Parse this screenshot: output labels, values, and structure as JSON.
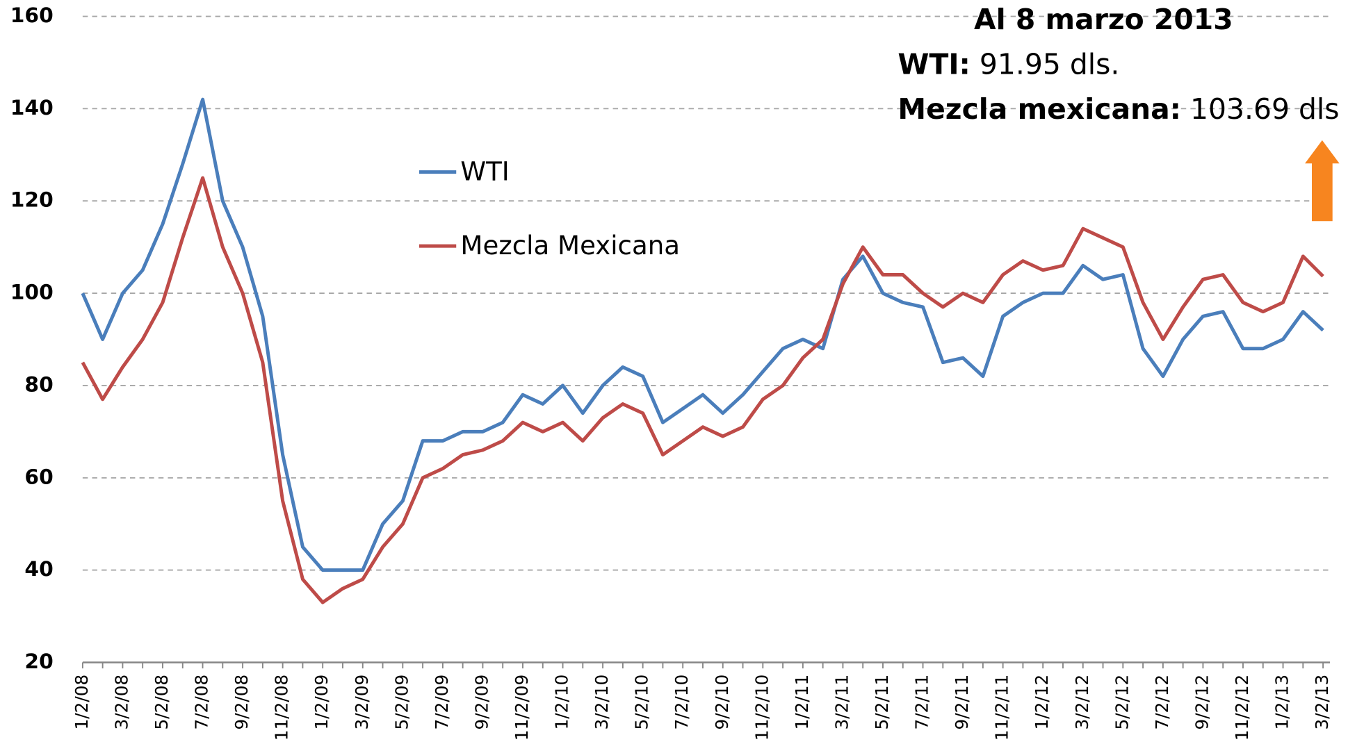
{
  "chart_data": {
    "type": "line",
    "categories": [
      "1/2/08",
      null,
      "3/2/08",
      null,
      "5/2/08",
      null,
      "7/2/08",
      null,
      "9/2/08",
      null,
      "11/2/08",
      null,
      "1/2/09",
      null,
      "3/2/09",
      null,
      "5/2/09",
      null,
      "7/2/09",
      null,
      "9/2/09",
      null,
      "11/2/09",
      null,
      "1/2/10",
      null,
      "3/2/10",
      null,
      "5/2/10",
      null,
      "7/2/10",
      null,
      "9/2/10",
      null,
      "11/2/10",
      null,
      "1/2/11",
      null,
      "3/2/11",
      null,
      "5/2/11",
      null,
      "7/2/11",
      null,
      "9/2/11",
      null,
      "11/2/11",
      null,
      "1/2/12",
      null,
      "3/2/12",
      null,
      "5/2/12",
      null,
      "7/2/12",
      null,
      "9/2/12",
      null,
      "11/2/12",
      null,
      "1/2/13",
      null,
      "3/2/13"
    ],
    "series": [
      {
        "name": "WTI",
        "color": "#4a7ebb",
        "values": [
          100,
          90,
          100,
          105,
          115,
          128,
          142,
          120,
          110,
          95,
          65,
          45,
          40,
          40,
          40,
          50,
          55,
          68,
          68,
          70,
          70,
          72,
          78,
          76,
          80,
          74,
          80,
          84,
          82,
          72,
          75,
          78,
          74,
          78,
          83,
          88,
          90,
          88,
          103,
          108,
          100,
          98,
          97,
          85,
          86,
          82,
          95,
          98,
          100,
          100,
          106,
          103,
          104,
          88,
          82,
          90,
          95,
          96,
          88,
          88,
          90,
          96,
          91.95
        ]
      },
      {
        "name": "Mezcla Mexicana",
        "color": "#be4b48",
        "values": [
          85,
          77,
          84,
          90,
          98,
          112,
          125,
          110,
          100,
          85,
          55,
          38,
          33,
          36,
          38,
          45,
          50,
          60,
          62,
          65,
          66,
          68,
          72,
          70,
          72,
          68,
          73,
          76,
          74,
          65,
          68,
          71,
          69,
          71,
          77,
          80,
          86,
          90,
          102,
          110,
          104,
          104,
          100,
          97,
          100,
          98,
          104,
          107,
          105,
          106,
          114,
          112,
          110,
          98,
          90,
          97,
          103,
          104,
          98,
          96,
          98,
          108,
          103.69
        ]
      }
    ],
    "ylim": [
      20,
      160
    ],
    "yticks": [
      20,
      40,
      60,
      80,
      100,
      120,
      140,
      160
    ],
    "grid": true,
    "annotations": {
      "date": "Al 8 marzo 2013",
      "wti_label": "WTI:",
      "wti_value": "91.95 dls.",
      "mezcla_label": "Mezcla mexicana:",
      "mezcla_value": "103.69 dls"
    }
  }
}
